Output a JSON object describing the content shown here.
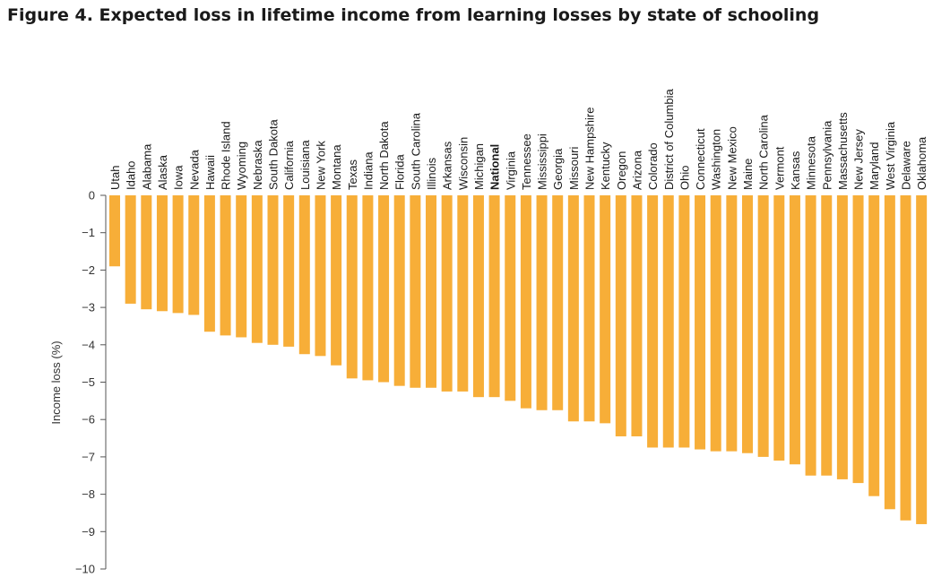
{
  "title": "Figure 4. Expected loss in lifetime income from learning losses by state of schooling",
  "colors": {
    "bar": "#f7ae38",
    "axis": "#555555"
  },
  "chart_data": {
    "type": "bar",
    "title": "Figure 4. Expected loss in lifetime income from learning losses by state of schooling",
    "xlabel": "",
    "ylabel": "Income loss (%)",
    "ylim": [
      -10,
      0
    ],
    "yticks": [
      0,
      -1,
      -2,
      -3,
      -4,
      -5,
      -6,
      -7,
      -8,
      -9,
      -10
    ],
    "ytick_labels": [
      "0",
      "−1",
      "−2",
      "−3",
      "−4",
      "−5",
      "−6",
      "−7",
      "−8",
      "−9",
      "−10"
    ],
    "grid": false,
    "highlight": "National",
    "categories": [
      "Utah",
      "Idaho",
      "Alabama",
      "Alaska",
      "Iowa",
      "Nevada",
      "Hawaii",
      "Rhode Island",
      "Wyoming",
      "Nebraska",
      "South Dakota",
      "California",
      "Louisiana",
      "New York",
      "Montana",
      "Texas",
      "Indiana",
      "North Dakota",
      "Florida",
      "South Carolina",
      "Illinois",
      "Arkansas",
      "Wisconsin",
      "Michigan",
      "National",
      "Virginia",
      "Tennessee",
      "Mississippi",
      "Georgia",
      "Missouri",
      "New Hampshire",
      "Kentucky",
      "Oregon",
      "Arizona",
      "Colorado",
      "District of Columbia",
      "Ohio",
      "Connecticut",
      "Washington",
      "New Mexico",
      "Maine",
      "North Carolina",
      "Vermont",
      "Kansas",
      "Minnesota",
      "Pennsylvania",
      "Massachusetts",
      "New Jersey",
      "Maryland",
      "West Virginia",
      "Delaware",
      "Oklahoma"
    ],
    "values": [
      -1.9,
      -2.9,
      -3.05,
      -3.1,
      -3.15,
      -3.2,
      -3.65,
      -3.75,
      -3.8,
      -3.95,
      -4.0,
      -4.05,
      -4.25,
      -4.3,
      -4.55,
      -4.9,
      -4.95,
      -5.0,
      -5.1,
      -5.15,
      -5.15,
      -5.25,
      -5.25,
      -5.4,
      -5.4,
      -5.5,
      -5.7,
      -5.75,
      -5.75,
      -6.05,
      -6.05,
      -6.1,
      -6.45,
      -6.45,
      -6.75,
      -6.75,
      -6.75,
      -6.8,
      -6.85,
      -6.85,
      -6.9,
      -7.0,
      -7.1,
      -7.2,
      -7.5,
      -7.5,
      -7.6,
      -7.7,
      -8.05,
      -8.4,
      -8.7,
      -8.8
    ]
  }
}
